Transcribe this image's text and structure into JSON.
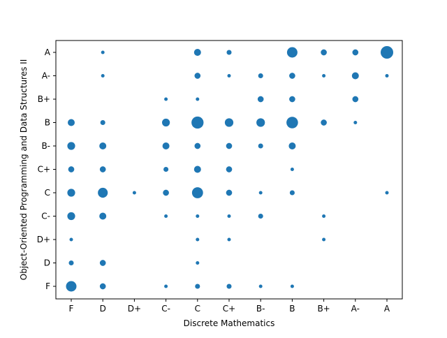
{
  "chart_data": {
    "type": "scatter",
    "xlabel": "Discrete Mathematics",
    "ylabel": "Object-Oriented Programming and Data Structures II",
    "x_categories": [
      "F",
      "D",
      "D+",
      "C-",
      "C",
      "C+",
      "B-",
      "B",
      "B+",
      "A-",
      "A"
    ],
    "y_categories": [
      "F",
      "D",
      "D+",
      "C-",
      "C",
      "C+",
      "B-",
      "B",
      "B+",
      "A-",
      "A"
    ],
    "point_color": "#1f77b4",
    "size_encoding": "marker area proportional to count",
    "points": [
      {
        "x": "F",
        "y": "F",
        "count": 9
      },
      {
        "x": "D",
        "y": "F",
        "count": 3
      },
      {
        "x": "C-",
        "y": "F",
        "count": 1
      },
      {
        "x": "C",
        "y": "F",
        "count": 2
      },
      {
        "x": "C+",
        "y": "F",
        "count": 2
      },
      {
        "x": "B-",
        "y": "F",
        "count": 1
      },
      {
        "x": "B",
        "y": "F",
        "count": 1
      },
      {
        "x": "F",
        "y": "D",
        "count": 2
      },
      {
        "x": "D",
        "y": "D",
        "count": 3
      },
      {
        "x": "C",
        "y": "D",
        "count": 1
      },
      {
        "x": "F",
        "y": "D+",
        "count": 1
      },
      {
        "x": "C",
        "y": "D+",
        "count": 1
      },
      {
        "x": "C+",
        "y": "D+",
        "count": 1
      },
      {
        "x": "B+",
        "y": "D+",
        "count": 1
      },
      {
        "x": "F",
        "y": "C-",
        "count": 5
      },
      {
        "x": "D",
        "y": "C-",
        "count": 4
      },
      {
        "x": "C-",
        "y": "C-",
        "count": 1
      },
      {
        "x": "C",
        "y": "C-",
        "count": 1
      },
      {
        "x": "C+",
        "y": "C-",
        "count": 1
      },
      {
        "x": "B-",
        "y": "C-",
        "count": 2
      },
      {
        "x": "B+",
        "y": "C-",
        "count": 1
      },
      {
        "x": "F",
        "y": "C",
        "count": 5
      },
      {
        "x": "D",
        "y": "C",
        "count": 8
      },
      {
        "x": "D+",
        "y": "C",
        "count": 1
      },
      {
        "x": "C-",
        "y": "C",
        "count": 3
      },
      {
        "x": "C",
        "y": "C",
        "count": 10
      },
      {
        "x": "C+",
        "y": "C",
        "count": 3
      },
      {
        "x": "B-",
        "y": "C",
        "count": 1
      },
      {
        "x": "B",
        "y": "C",
        "count": 2
      },
      {
        "x": "A",
        "y": "C",
        "count": 1
      },
      {
        "x": "F",
        "y": "C+",
        "count": 3
      },
      {
        "x": "D",
        "y": "C+",
        "count": 3
      },
      {
        "x": "C-",
        "y": "C+",
        "count": 2
      },
      {
        "x": "C",
        "y": "C+",
        "count": 4
      },
      {
        "x": "C+",
        "y": "C+",
        "count": 3
      },
      {
        "x": "B",
        "y": "C+",
        "count": 1
      },
      {
        "x": "F",
        "y": "B-",
        "count": 5
      },
      {
        "x": "D",
        "y": "B-",
        "count": 4
      },
      {
        "x": "C-",
        "y": "B-",
        "count": 4
      },
      {
        "x": "C",
        "y": "B-",
        "count": 3
      },
      {
        "x": "C+",
        "y": "B-",
        "count": 3
      },
      {
        "x": "B-",
        "y": "B-",
        "count": 2
      },
      {
        "x": "B",
        "y": "B-",
        "count": 4
      },
      {
        "x": "F",
        "y": "B",
        "count": 4
      },
      {
        "x": "D",
        "y": "B",
        "count": 2
      },
      {
        "x": "C-",
        "y": "B",
        "count": 5
      },
      {
        "x": "C",
        "y": "B",
        "count": 12
      },
      {
        "x": "C+",
        "y": "B",
        "count": 6
      },
      {
        "x": "B-",
        "y": "B",
        "count": 6
      },
      {
        "x": "B",
        "y": "B",
        "count": 11
      },
      {
        "x": "B+",
        "y": "B",
        "count": 3
      },
      {
        "x": "A-",
        "y": "B",
        "count": 1
      },
      {
        "x": "C-",
        "y": "B+",
        "count": 1
      },
      {
        "x": "C",
        "y": "B+",
        "count": 1
      },
      {
        "x": "B-",
        "y": "B+",
        "count": 3
      },
      {
        "x": "B",
        "y": "B+",
        "count": 3
      },
      {
        "x": "A-",
        "y": "B+",
        "count": 3
      },
      {
        "x": "D",
        "y": "A-",
        "count": 1
      },
      {
        "x": "C",
        "y": "A-",
        "count": 3
      },
      {
        "x": "C+",
        "y": "A-",
        "count": 1
      },
      {
        "x": "B-",
        "y": "A-",
        "count": 2
      },
      {
        "x": "B",
        "y": "A-",
        "count": 3
      },
      {
        "x": "B+",
        "y": "A-",
        "count": 1
      },
      {
        "x": "A-",
        "y": "A-",
        "count": 4
      },
      {
        "x": "A",
        "y": "A-",
        "count": 1
      },
      {
        "x": "D",
        "y": "A",
        "count": 1
      },
      {
        "x": "C",
        "y": "A",
        "count": 4
      },
      {
        "x": "C+",
        "y": "A",
        "count": 2
      },
      {
        "x": "B",
        "y": "A",
        "count": 9
      },
      {
        "x": "B+",
        "y": "A",
        "count": 3
      },
      {
        "x": "A-",
        "y": "A",
        "count": 3
      },
      {
        "x": "A",
        "y": "A",
        "count": 13
      }
    ]
  }
}
